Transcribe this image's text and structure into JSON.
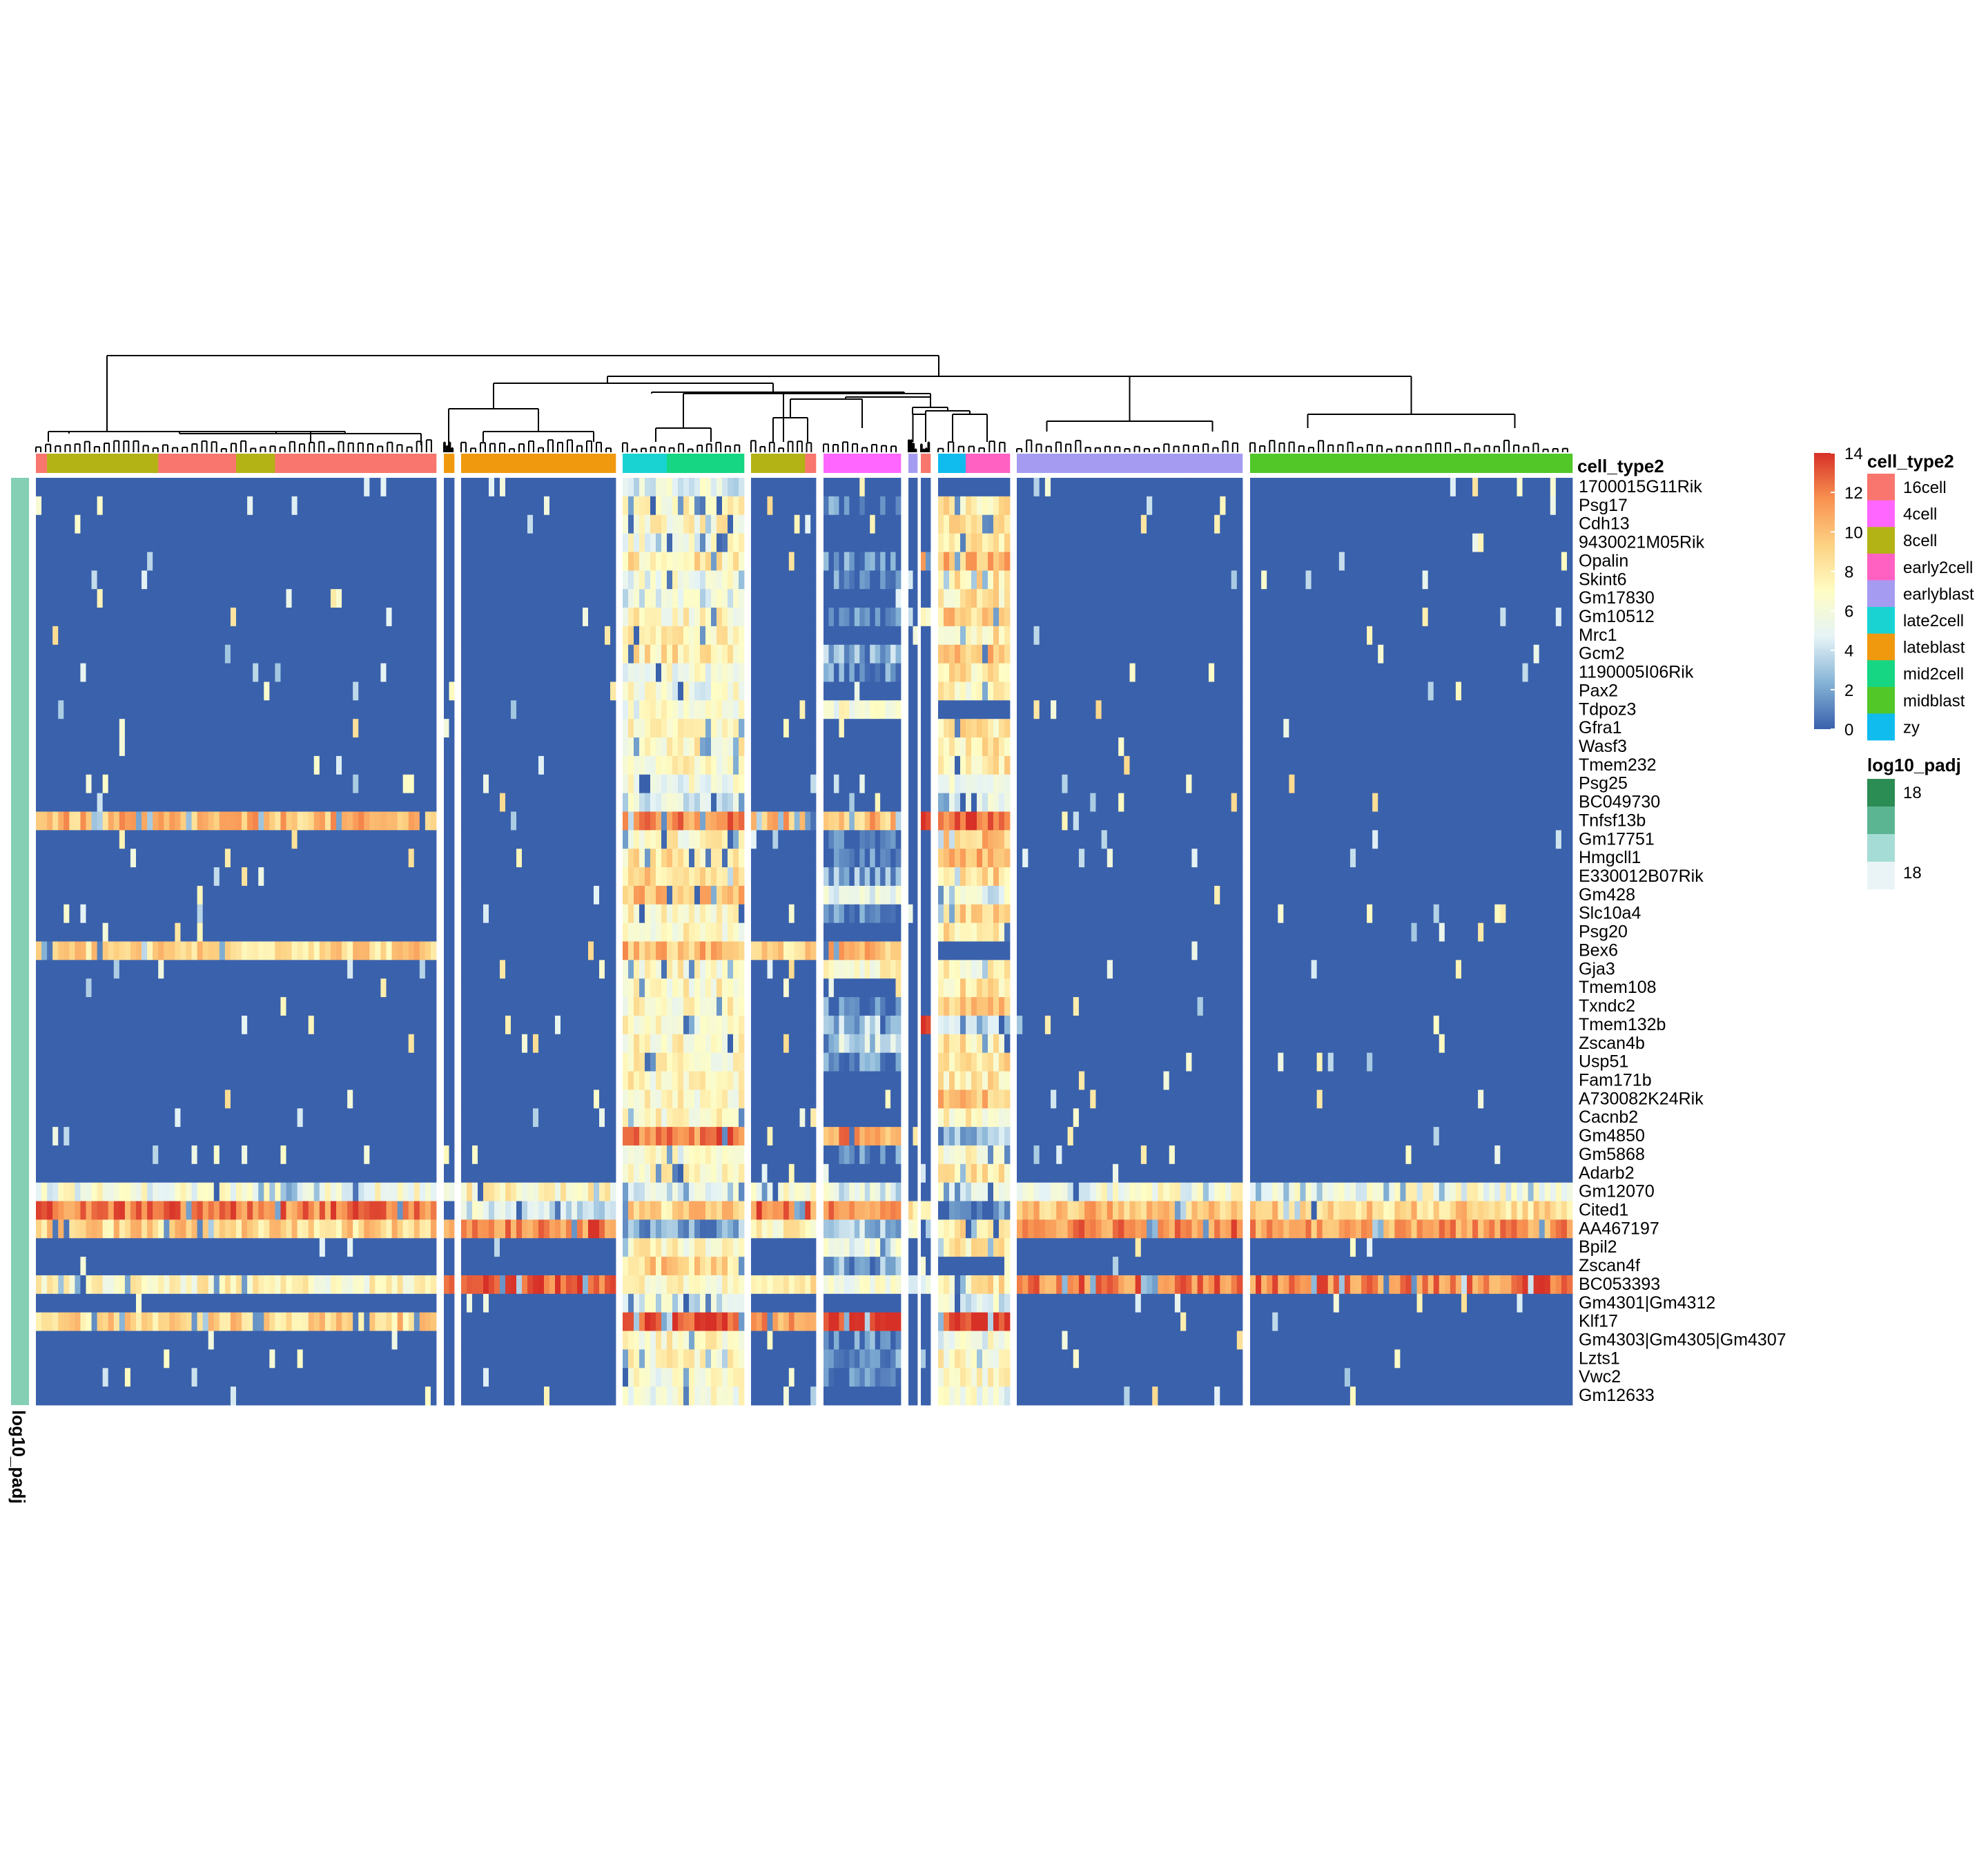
{
  "chart_data": {
    "type": "heatmap",
    "title": "",
    "column_annotation_title": "cell_type2",
    "row_annotation_title": "log10_padj",
    "row_annotation_color": "#85cfb5",
    "rows": [
      "1700015G11Rik",
      "Psg17",
      "Cdh13",
      "9430021M05Rik",
      "Opalin",
      "Skint6",
      "Gm17830",
      "Gm10512",
      "Mrc1",
      "Gcm2",
      "1190005I06Rik",
      "Pax2",
      "Tdpoz3",
      "Gfra1",
      "Wasf3",
      "Tmem232",
      "Psg25",
      "BC049730",
      "Tnfsf13b",
      "Gm17751",
      "Hmgcll1",
      "E330012B07Rik",
      "Gm428",
      "Slc10a4",
      "Psg20",
      "Bex6",
      "Gja3",
      "Tmem108",
      "Txndc2",
      "Tmem132b",
      "Zscan4b",
      "Usp51",
      "Fam171b",
      "A730082K24Rik",
      "Cacnb2",
      "Gm4850",
      "Gm5868",
      "Adarb2",
      "Gm12070",
      "Cited1",
      "AA467197",
      "Bpil2",
      "Zscan4f",
      "BC053393",
      "Gm4301|Gm4312",
      "Klf17",
      "Gm4303|Gm4305|Gm4307",
      "Lzts1",
      "Vwc2",
      "Gm12633"
    ],
    "column_clusters": [
      {
        "annotation": "8cell / 16cell",
        "cells": 72,
        "segments": [
          [
            "16cell",
            2
          ],
          [
            "8cell",
            20
          ],
          [
            "16cell",
            14
          ],
          [
            "8cell",
            7
          ],
          [
            "16cell",
            29
          ]
        ]
      },
      {
        "annotation": "lateblast",
        "cells": 2,
        "segments": [
          [
            "lateblast",
            2
          ]
        ]
      },
      {
        "annotation": "lateblast",
        "cells": 28,
        "segments": [
          [
            "lateblast",
            28
          ]
        ]
      },
      {
        "annotation": "late2cell / mid2cell",
        "cells": 22,
        "segments": [
          [
            "late2cell",
            8
          ],
          [
            "mid2cell",
            14
          ]
        ]
      },
      {
        "annotation": "8cell / 16cell",
        "cells": 12,
        "segments": [
          [
            "8cell",
            10
          ],
          [
            "16cell",
            2
          ]
        ]
      },
      {
        "annotation": "4cell",
        "cells": 15,
        "segments": [
          [
            "4cell",
            15
          ]
        ]
      },
      {
        "annotation": "earlyblast",
        "cells": 2,
        "segments": [
          [
            "earlyblast",
            2
          ]
        ]
      },
      {
        "annotation": "16cell",
        "cells": 2,
        "segments": [
          [
            "16cell",
            2
          ]
        ]
      },
      {
        "annotation": "zy / early2cell",
        "cells": 13,
        "segments": [
          [
            "zy",
            5
          ],
          [
            "early2cell",
            8
          ]
        ]
      },
      {
        "annotation": "earlyblast",
        "cells": 40,
        "segments": [
          [
            "earlyblast",
            40
          ]
        ]
      },
      {
        "annotation": "midblast",
        "cells": 58,
        "segments": [
          [
            "midblast",
            58
          ]
        ]
      }
    ],
    "block_levels": [
      [
        0,
        0,
        0,
        5,
        0,
        0,
        0,
        0,
        0,
        0,
        0
      ],
      [
        0,
        0,
        0,
        7,
        0,
        1,
        0,
        0,
        8,
        0,
        0
      ],
      [
        0,
        0,
        0,
        7,
        0,
        0,
        0,
        0,
        8,
        0,
        0
      ],
      [
        0,
        0,
        0,
        6,
        0,
        0,
        0,
        0,
        8,
        0,
        0
      ],
      [
        0,
        0,
        0,
        8,
        0,
        1,
        0,
        11,
        10,
        0,
        0
      ],
      [
        0,
        0,
        0,
        6,
        0,
        1,
        0,
        0,
        8,
        0,
        0
      ],
      [
        0,
        0,
        0,
        5,
        0,
        0,
        0,
        0,
        8,
        0,
        0
      ],
      [
        0,
        0,
        0,
        7,
        0,
        1,
        0,
        8,
        9,
        0,
        0
      ],
      [
        0,
        0,
        0,
        7,
        0,
        0,
        0,
        0,
        8,
        0,
        0
      ],
      [
        0,
        0,
        0,
        8,
        0,
        3,
        0,
        0,
        10,
        0,
        0
      ],
      [
        0,
        0,
        0,
        6,
        0,
        1,
        0,
        0,
        8,
        0,
        0
      ],
      [
        0,
        0,
        0,
        6,
        0,
        0,
        0,
        0,
        7,
        0,
        0
      ],
      [
        0,
        0,
        0,
        6,
        0,
        6,
        0,
        0,
        0,
        0,
        0
      ],
      [
        0,
        0,
        0,
        7,
        0,
        0,
        0,
        0,
        8,
        0,
        0
      ],
      [
        0,
        0,
        0,
        7,
        0,
        0,
        0,
        0,
        8,
        0,
        0
      ],
      [
        0,
        0,
        0,
        7,
        0,
        0,
        0,
        0,
        8,
        0,
        0
      ],
      [
        0,
        0,
        0,
        6,
        0,
        0,
        0,
        0,
        6,
        0,
        0
      ],
      [
        0,
        0,
        0,
        5,
        0,
        0,
        0,
        0,
        5,
        0,
        0
      ],
      [
        10,
        0,
        0,
        12,
        10,
        10,
        0,
        13,
        13,
        0,
        0
      ],
      [
        0,
        0,
        0,
        7,
        0,
        1,
        0,
        0,
        10,
        0,
        0
      ],
      [
        0,
        0,
        0,
        8,
        0,
        1,
        0,
        0,
        10,
        0,
        0
      ],
      [
        0,
        0,
        0,
        9,
        0,
        2,
        0,
        0,
        9,
        0,
        0
      ],
      [
        0,
        0,
        0,
        10,
        0,
        5,
        0,
        0,
        5,
        0,
        0
      ],
      [
        0,
        0,
        0,
        7,
        0,
        1,
        0,
        0,
        9,
        0,
        0
      ],
      [
        0,
        0,
        0,
        7,
        0,
        0,
        0,
        0,
        8,
        0,
        0
      ],
      [
        9,
        0,
        0,
        10,
        9,
        10,
        0,
        0,
        0,
        0,
        0
      ],
      [
        0,
        0,
        0,
        7,
        0,
        7,
        0,
        0,
        7,
        0,
        0
      ],
      [
        0,
        0,
        0,
        7,
        0,
        0,
        0,
        0,
        8,
        0,
        0
      ],
      [
        0,
        0,
        0,
        7,
        0,
        1,
        0,
        0,
        10,
        0,
        0
      ],
      [
        0,
        0,
        0,
        7,
        0,
        3,
        0,
        13,
        3,
        0,
        0
      ],
      [
        0,
        0,
        0,
        7,
        0,
        4,
        0,
        0,
        8,
        0,
        0
      ],
      [
        0,
        0,
        0,
        7,
        0,
        1,
        0,
        0,
        8,
        0,
        0
      ],
      [
        0,
        0,
        0,
        7,
        0,
        0,
        0,
        0,
        8,
        0,
        0
      ],
      [
        0,
        0,
        0,
        7,
        0,
        0,
        0,
        0,
        10,
        0,
        0
      ],
      [
        0,
        0,
        0,
        7,
        0,
        0,
        0,
        0,
        7,
        0,
        0
      ],
      [
        0,
        0,
        0,
        12,
        0,
        11,
        0,
        0,
        3,
        0,
        0
      ],
      [
        0,
        0,
        0,
        6,
        0,
        1,
        0,
        0,
        7,
        0,
        0
      ],
      [
        0,
        0,
        0,
        7,
        0,
        0,
        0,
        0,
        8,
        0,
        0
      ],
      [
        6,
        7,
        7,
        5,
        6,
        5,
        0,
        0,
        5,
        6,
        6
      ],
      [
        12,
        0,
        5,
        9,
        12,
        12,
        8,
        8,
        1,
        10,
        9
      ],
      [
        9,
        12,
        12,
        2,
        7,
        3,
        8,
        8,
        8,
        12,
        11
      ],
      [
        0,
        0,
        0,
        7,
        0,
        5,
        0,
        0,
        8,
        0,
        0
      ],
      [
        0,
        0,
        0,
        9,
        0,
        2,
        0,
        0,
        0,
        0,
        0
      ],
      [
        7,
        13,
        13,
        7,
        8,
        6,
        6,
        6,
        8,
        12,
        12
      ],
      [
        0,
        0,
        0,
        5,
        0,
        0,
        0,
        0,
        5,
        0,
        0
      ],
      [
        9,
        0,
        0,
        14,
        11,
        14,
        0,
        0,
        14,
        0,
        0
      ],
      [
        0,
        0,
        0,
        7,
        0,
        1,
        0,
        0,
        6,
        0,
        0
      ],
      [
        0,
        0,
        0,
        7,
        0,
        1,
        0,
        0,
        7,
        0,
        0
      ],
      [
        0,
        0,
        0,
        6,
        0,
        1,
        0,
        0,
        7,
        0,
        0
      ],
      [
        0,
        0,
        0,
        6,
        0,
        0,
        0,
        0,
        6,
        0,
        0
      ]
    ],
    "color_scale": {
      "min": 0,
      "max": 14,
      "ticks": [
        0,
        2,
        4,
        6,
        8,
        10,
        12,
        14
      ],
      "colors": [
        "#3a61ac",
        "#85b3d6",
        "#e5f3f6",
        "#fefdc4",
        "#fdd283",
        "#f89251",
        "#d73027"
      ]
    },
    "legend_cell_type2": {
      "title": "cell_type2",
      "items": [
        {
          "label": "16cell",
          "color": "#f8766d"
        },
        {
          "label": "4cell",
          "color": "#ff66ff"
        },
        {
          "label": "8cell",
          "color": "#b3b316"
        },
        {
          "label": "early2cell",
          "color": "#ff61c3"
        },
        {
          "label": "earlyblast",
          "color": "#a59cf2"
        },
        {
          "label": "late2cell",
          "color": "#19d3d3"
        },
        {
          "label": "lateblast",
          "color": "#f0990f"
        },
        {
          "label": "mid2cell",
          "color": "#16d684"
        },
        {
          "label": "midblast",
          "color": "#52c728"
        },
        {
          "label": "zy",
          "color": "#10bbee"
        }
      ]
    },
    "legend_log10_padj": {
      "title": "log10_padj",
      "top_label": "18",
      "bottom_label": "18",
      "colors": [
        "#2b8c54",
        "#5cb592",
        "#a6dcd6",
        "#eaf4f7"
      ]
    }
  }
}
